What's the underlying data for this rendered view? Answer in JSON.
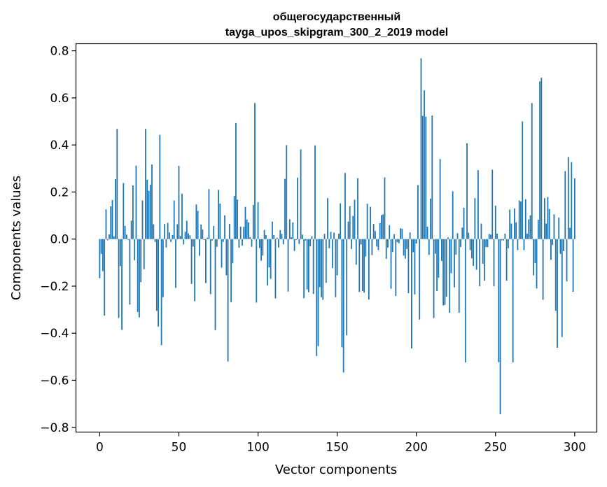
{
  "chart_data": {
    "type": "bar",
    "title_line1": "общегосударственный",
    "title_line2": "tayga_upos_skipgram_300_2_2019 model",
    "xlabel": "Vector components",
    "ylabel": "Components values",
    "xlim": [
      -15,
      314
    ],
    "ylim": [
      -0.82,
      0.83
    ],
    "xticks": [
      0,
      50,
      100,
      150,
      200,
      250,
      300
    ],
    "yticks": [
      -0.8,
      -0.6,
      -0.4,
      -0.2,
      0.0,
      0.2,
      0.4,
      0.6,
      0.8
    ],
    "ytick_labels": [
      "−0.8",
      "−0.6",
      "−0.4",
      "−0.2",
      "0.0",
      "0.2",
      "0.4",
      "0.6",
      "0.8"
    ],
    "grid": false,
    "bar_color": "#1f77b4",
    "values": [
      -0.166,
      -0.063,
      -0.136,
      -0.325,
      0.126,
      -0.005,
      0.02,
      0.139,
      0.166,
      0.012,
      0.255,
      0.468,
      -0.335,
      -0.115,
      -0.386,
      0.238,
      0.056,
      0.019,
      -0.003,
      -0.278,
      0.078,
      0.228,
      -0.09,
      0.312,
      -0.31,
      -0.333,
      -0.183,
      0.164,
      -0.128,
      0.468,
      0.252,
      0.205,
      0.231,
      0.317,
      0.063,
      -0.012,
      -0.305,
      -0.372,
      0.443,
      -0.451,
      -0.247,
      0.064,
      -0.036,
      0.069,
      0.028,
      -0.012,
      0.017,
      0.164,
      -0.207,
      0.063,
      0.311,
      0.013,
      0.193,
      -0.023,
      0.031,
      0.078,
      0.024,
      0.016,
      -0.191,
      -0.032,
      -0.264,
      0.147,
      0.12,
      -0.071,
      0.062,
      0.041,
      -0.004,
      -0.187,
      0.006,
      0.212,
      -0.234,
      -0.006,
      0.056,
      -0.387,
      -0.033,
      0.209,
      0.151,
      -0.121,
      -0.012,
      0.101,
      -0.154,
      -0.52,
      0.065,
      -0.268,
      -0.103,
      0.183,
      0.493,
      0.168,
      -0.037,
      0.053,
      -0.028,
      0.052,
      0.137,
      0.083,
      0.071,
      0.008,
      -0.033,
      0.145,
      0.578,
      -0.27,
      0.157,
      -0.038,
      -0.092,
      -0.07,
      0.039,
      0.017,
      -0.197,
      -0.12,
      -0.169,
      0.074,
      0.017,
      -0.252,
      0.006,
      -0.036,
      0.038,
      0.022,
      -0.022,
      0.256,
      0.399,
      -0.223,
      0.084,
      0.008,
      0.071,
      -0.05,
      -0.004,
      0.261,
      -0.021,
      0.381,
      0.019,
      -0.251,
      -0.006,
      -0.214,
      -0.226,
      -0.031,
      0.012,
      -0.233,
      0.398,
      -0.497,
      -0.455,
      -0.204,
      -0.247,
      -0.258,
      0.022,
      -0.186,
      0.174,
      -0.039,
      0.031,
      -0.123,
      0.027,
      -0.247,
      -0.154,
      0.023,
      0.152,
      -0.46,
      -0.567,
      0.281,
      -0.409,
      0.074,
      0.14,
      -0.042,
      0.098,
      0.167,
      -0.109,
      0.259,
      -0.225,
      -0.023,
      -0.221,
      -0.228,
      -0.074,
      0.15,
      -0.257,
      0.137,
      -0.068,
      0.064,
      0.034,
      -0.032,
      -0.047,
      0.068,
      0.102,
      0.105,
      0.262,
      -0.084,
      -0.036,
      0.059,
      -0.211,
      -0.055,
      0.021,
      -0.242,
      -0.013,
      -0.018,
      0.046,
      0.044,
      -0.07,
      -0.083,
      -0.042,
      -0.23,
      0.028,
      -0.465,
      -0.056,
      -0.235,
      -0.019,
      0.229,
      -0.342,
      0.768,
      0.523,
      0.632,
      0.52,
      0.053,
      -0.067,
      0.172,
      0.525,
      -0.335,
      -0.062,
      -0.221,
      -0.164,
      0.34,
      -0.093,
      -0.282,
      -0.28,
      -0.245,
      0.007,
      -0.313,
      -0.145,
      0.203,
      -0.205,
      -0.066,
      0.025,
      -0.313,
      -0.034,
      0.049,
      0.133,
      -0.524,
      0.407,
      0.027,
      -0.047,
      -0.082,
      -0.114,
      0.174,
      -0.13,
      0.293,
      -0.2,
      0.066,
      -0.105,
      -0.177,
      -0.034,
      -0.034,
      0.022,
      0.019,
      0.295,
      -0.2,
      0.142,
      0.023,
      -0.523,
      -0.744,
      -0.005,
      -0.006,
      0.023,
      -0.177,
      -0.039,
      0.125,
      0.066,
      -0.524,
      0.13,
      0.071,
      -0.047,
      0.164,
      0.16,
      0.5,
      -0.047,
      0.169,
      0.023,
      0.084,
      0.101,
      0.578,
      -0.154,
      -0.102,
      -0.21,
      0.082,
      0.67,
      0.686,
      -0.258,
      0.174,
      0.066,
      0.179,
      0.128,
      -0.088,
      -0.025,
      0.105,
      -0.305,
      -0.462,
      0.091,
      -0.063,
      -0.416,
      -0.051,
      0.289,
      -0.18,
      0.349,
      0.048,
      0.327,
      -0.224,
      0.258
    ]
  }
}
